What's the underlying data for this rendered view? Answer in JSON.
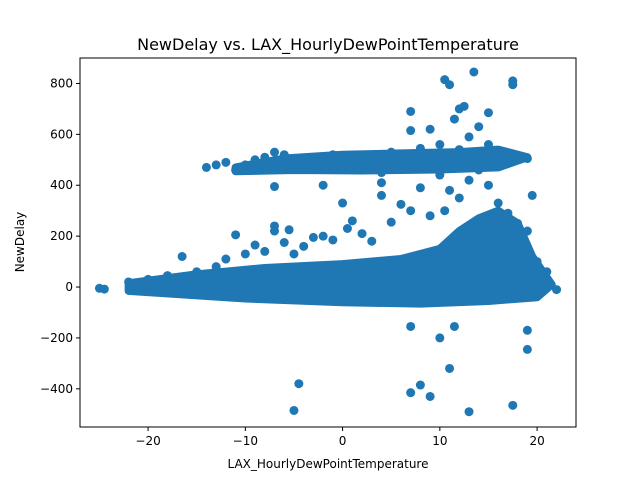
{
  "chart_data": {
    "type": "scatter",
    "title": "NewDelay vs. LAX_HourlyDewPointTemperature",
    "xlabel": "LAX_HourlyDewPointTemperature",
    "ylabel": "NewDelay",
    "xlim": [
      -27,
      24
    ],
    "ylim": [
      -550,
      900
    ],
    "xticks": [
      -20,
      -10,
      0,
      10,
      20
    ],
    "xtick_labels": [
      "−20",
      "−10",
      "0",
      "10",
      "20"
    ],
    "yticks": [
      -400,
      -200,
      0,
      200,
      400,
      600,
      800
    ],
    "ytick_labels": [
      "−400",
      "−200",
      "0",
      "200",
      "400",
      "600",
      "800"
    ],
    "grid": false,
    "legend": "none",
    "marker_color": "#1f77b4",
    "points": [
      {
        "x": -25,
        "y": -5
      },
      {
        "x": -24.5,
        "y": -8
      },
      {
        "x": -22,
        "y": 20
      },
      {
        "x": -21,
        "y": 15
      },
      {
        "x": -20,
        "y": 30
      },
      {
        "x": -18,
        "y": 45
      },
      {
        "x": -16.5,
        "y": 120
      },
      {
        "x": -15,
        "y": 60
      },
      {
        "x": -13,
        "y": 80
      },
      {
        "x": -12,
        "y": 110
      },
      {
        "x": -11,
        "y": 205
      },
      {
        "x": -10,
        "y": 130
      },
      {
        "x": -9,
        "y": 165
      },
      {
        "x": -8,
        "y": 140
      },
      {
        "x": -7,
        "y": 240
      },
      {
        "x": -7,
        "y": 220
      },
      {
        "x": -6,
        "y": 175
      },
      {
        "x": -5.5,
        "y": 225
      },
      {
        "x": -5,
        "y": 130
      },
      {
        "x": -4,
        "y": 160
      },
      {
        "x": -3,
        "y": 195
      },
      {
        "x": -2,
        "y": 200
      },
      {
        "x": -1,
        "y": 185
      },
      {
        "x": 0,
        "y": 330
      },
      {
        "x": 0.5,
        "y": 230
      },
      {
        "x": 1,
        "y": 260
      },
      {
        "x": 2,
        "y": 210
      },
      {
        "x": 3,
        "y": 180
      },
      {
        "x": 4,
        "y": 360
      },
      {
        "x": 4,
        "y": 410
      },
      {
        "x": 5,
        "y": 255
      },
      {
        "x": 6,
        "y": 325
      },
      {
        "x": 7,
        "y": 300
      },
      {
        "x": 8,
        "y": 390
      },
      {
        "x": 9,
        "y": 280
      },
      {
        "x": 10,
        "y": 440
      },
      {
        "x": 10.5,
        "y": 300
      },
      {
        "x": 11,
        "y": 380
      },
      {
        "x": 12,
        "y": 350
      },
      {
        "x": 13,
        "y": 420
      },
      {
        "x": 14,
        "y": 460
      },
      {
        "x": 15,
        "y": 400
      },
      {
        "x": 16,
        "y": 330
      },
      {
        "x": 17,
        "y": 290
      },
      {
        "x": 18,
        "y": 250
      },
      {
        "x": 19,
        "y": 220
      },
      {
        "x": 19.5,
        "y": 360
      },
      {
        "x": 20,
        "y": 100
      },
      {
        "x": 21,
        "y": 60
      },
      {
        "x": 22,
        "y": -10
      },
      {
        "x": -14,
        "y": 470
      },
      {
        "x": -13,
        "y": 480
      },
      {
        "x": -12,
        "y": 490
      },
      {
        "x": -11,
        "y": 460
      },
      {
        "x": -10,
        "y": 480
      },
      {
        "x": -9,
        "y": 500
      },
      {
        "x": -8,
        "y": 510
      },
      {
        "x": -7,
        "y": 530
      },
      {
        "x": -6,
        "y": 520
      },
      {
        "x": -5,
        "y": 495
      },
      {
        "x": -4,
        "y": 505
      },
      {
        "x": -3,
        "y": 470
      },
      {
        "x": -2,
        "y": 510
      },
      {
        "x": -1,
        "y": 520
      },
      {
        "x": 0,
        "y": 490
      },
      {
        "x": 1,
        "y": 510
      },
      {
        "x": 2,
        "y": 500
      },
      {
        "x": 3,
        "y": 520
      },
      {
        "x": 4,
        "y": 470
      },
      {
        "x": 5,
        "y": 530
      },
      {
        "x": 6,
        "y": 500
      },
      {
        "x": 7,
        "y": 510
      },
      {
        "x": 8,
        "y": 545
      },
      {
        "x": 9,
        "y": 620
      },
      {
        "x": 10,
        "y": 560
      },
      {
        "x": 11,
        "y": 500
      },
      {
        "x": 12,
        "y": 540
      },
      {
        "x": 13,
        "y": 590
      },
      {
        "x": 14,
        "y": 520
      },
      {
        "x": 15,
        "y": 560
      },
      {
        "x": 16,
        "y": 530
      },
      {
        "x": 17,
        "y": 500
      },
      {
        "x": 18,
        "y": 510
      },
      {
        "x": 19,
        "y": 505
      },
      {
        "x": 7,
        "y": 690
      },
      {
        "x": 10.5,
        "y": 815
      },
      {
        "x": 11,
        "y": 795
      },
      {
        "x": 11.5,
        "y": 660
      },
      {
        "x": 12,
        "y": 700
      },
      {
        "x": 12.5,
        "y": 710
      },
      {
        "x": 13.5,
        "y": 845
      },
      {
        "x": 14,
        "y": 630
      },
      {
        "x": 15,
        "y": 685
      },
      {
        "x": 17.5,
        "y": 810
      },
      {
        "x": 17.5,
        "y": 795
      },
      {
        "x": 7,
        "y": 615
      },
      {
        "x": -7,
        "y": 395
      },
      {
        "x": -2,
        "y": 400
      },
      {
        "x": 4,
        "y": 450
      },
      {
        "x": 7,
        "y": -155
      },
      {
        "x": 10,
        "y": -200
      },
      {
        "x": 11,
        "y": -320
      },
      {
        "x": 11.5,
        "y": -155
      },
      {
        "x": 7,
        "y": -415
      },
      {
        "x": 8,
        "y": -385
      },
      {
        "x": 9,
        "y": -430
      },
      {
        "x": 13,
        "y": -490
      },
      {
        "x": 17.5,
        "y": -465
      },
      {
        "x": 19,
        "y": -245
      },
      {
        "x": 19,
        "y": -170
      },
      {
        "x": -4.5,
        "y": -380
      },
      {
        "x": -5,
        "y": -485
      }
    ]
  }
}
